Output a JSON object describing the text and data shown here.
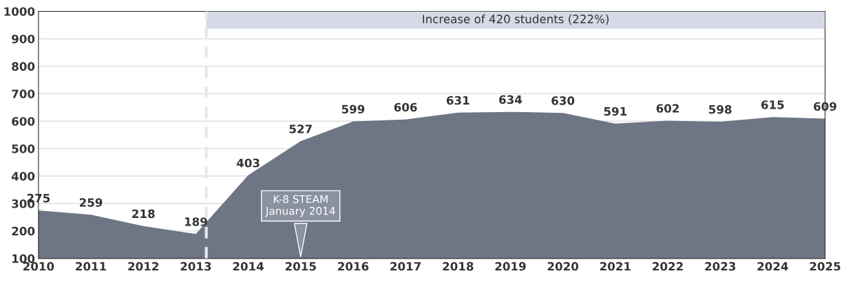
{
  "chart_data": {
    "type": "area",
    "x": [
      2010,
      2011,
      2012,
      2013,
      2014,
      2015,
      2016,
      2017,
      2018,
      2019,
      2020,
      2021,
      2022,
      2023,
      2024,
      2025
    ],
    "series": [
      {
        "color": "#6e7585",
        "values": [
          275,
          259,
          218,
          189,
          403,
          527,
          599,
          606,
          631,
          634,
          630,
          591,
          602,
          598,
          615,
          609
        ]
      }
    ],
    "data_labels": true,
    "xlim": [
      2010,
      2025
    ],
    "xticks": [
      2010,
      2011,
      2012,
      2013,
      2014,
      2015,
      2016,
      2017,
      2018,
      2019,
      2020,
      2021,
      2022,
      2023,
      2024,
      2025
    ],
    "ylim": [
      100,
      1000
    ],
    "yticks": [
      100,
      200,
      300,
      400,
      500,
      600,
      700,
      800,
      900,
      1000
    ],
    "grid": "y",
    "bands": [
      {
        "axis": "x",
        "from": 2013.2,
        "to": 2025,
        "label": "Increase of 420 students (222%)",
        "color": "#d5dae6"
      }
    ],
    "ref_lines": [
      {
        "axis": "x",
        "value": 2013.2,
        "color": "#e6e8ee",
        "line_style": "dashed"
      }
    ],
    "annotations": [
      {
        "text": "K-8 STEAM\nJanuary 2014",
        "x": 2015,
        "y": 100
      }
    ]
  }
}
